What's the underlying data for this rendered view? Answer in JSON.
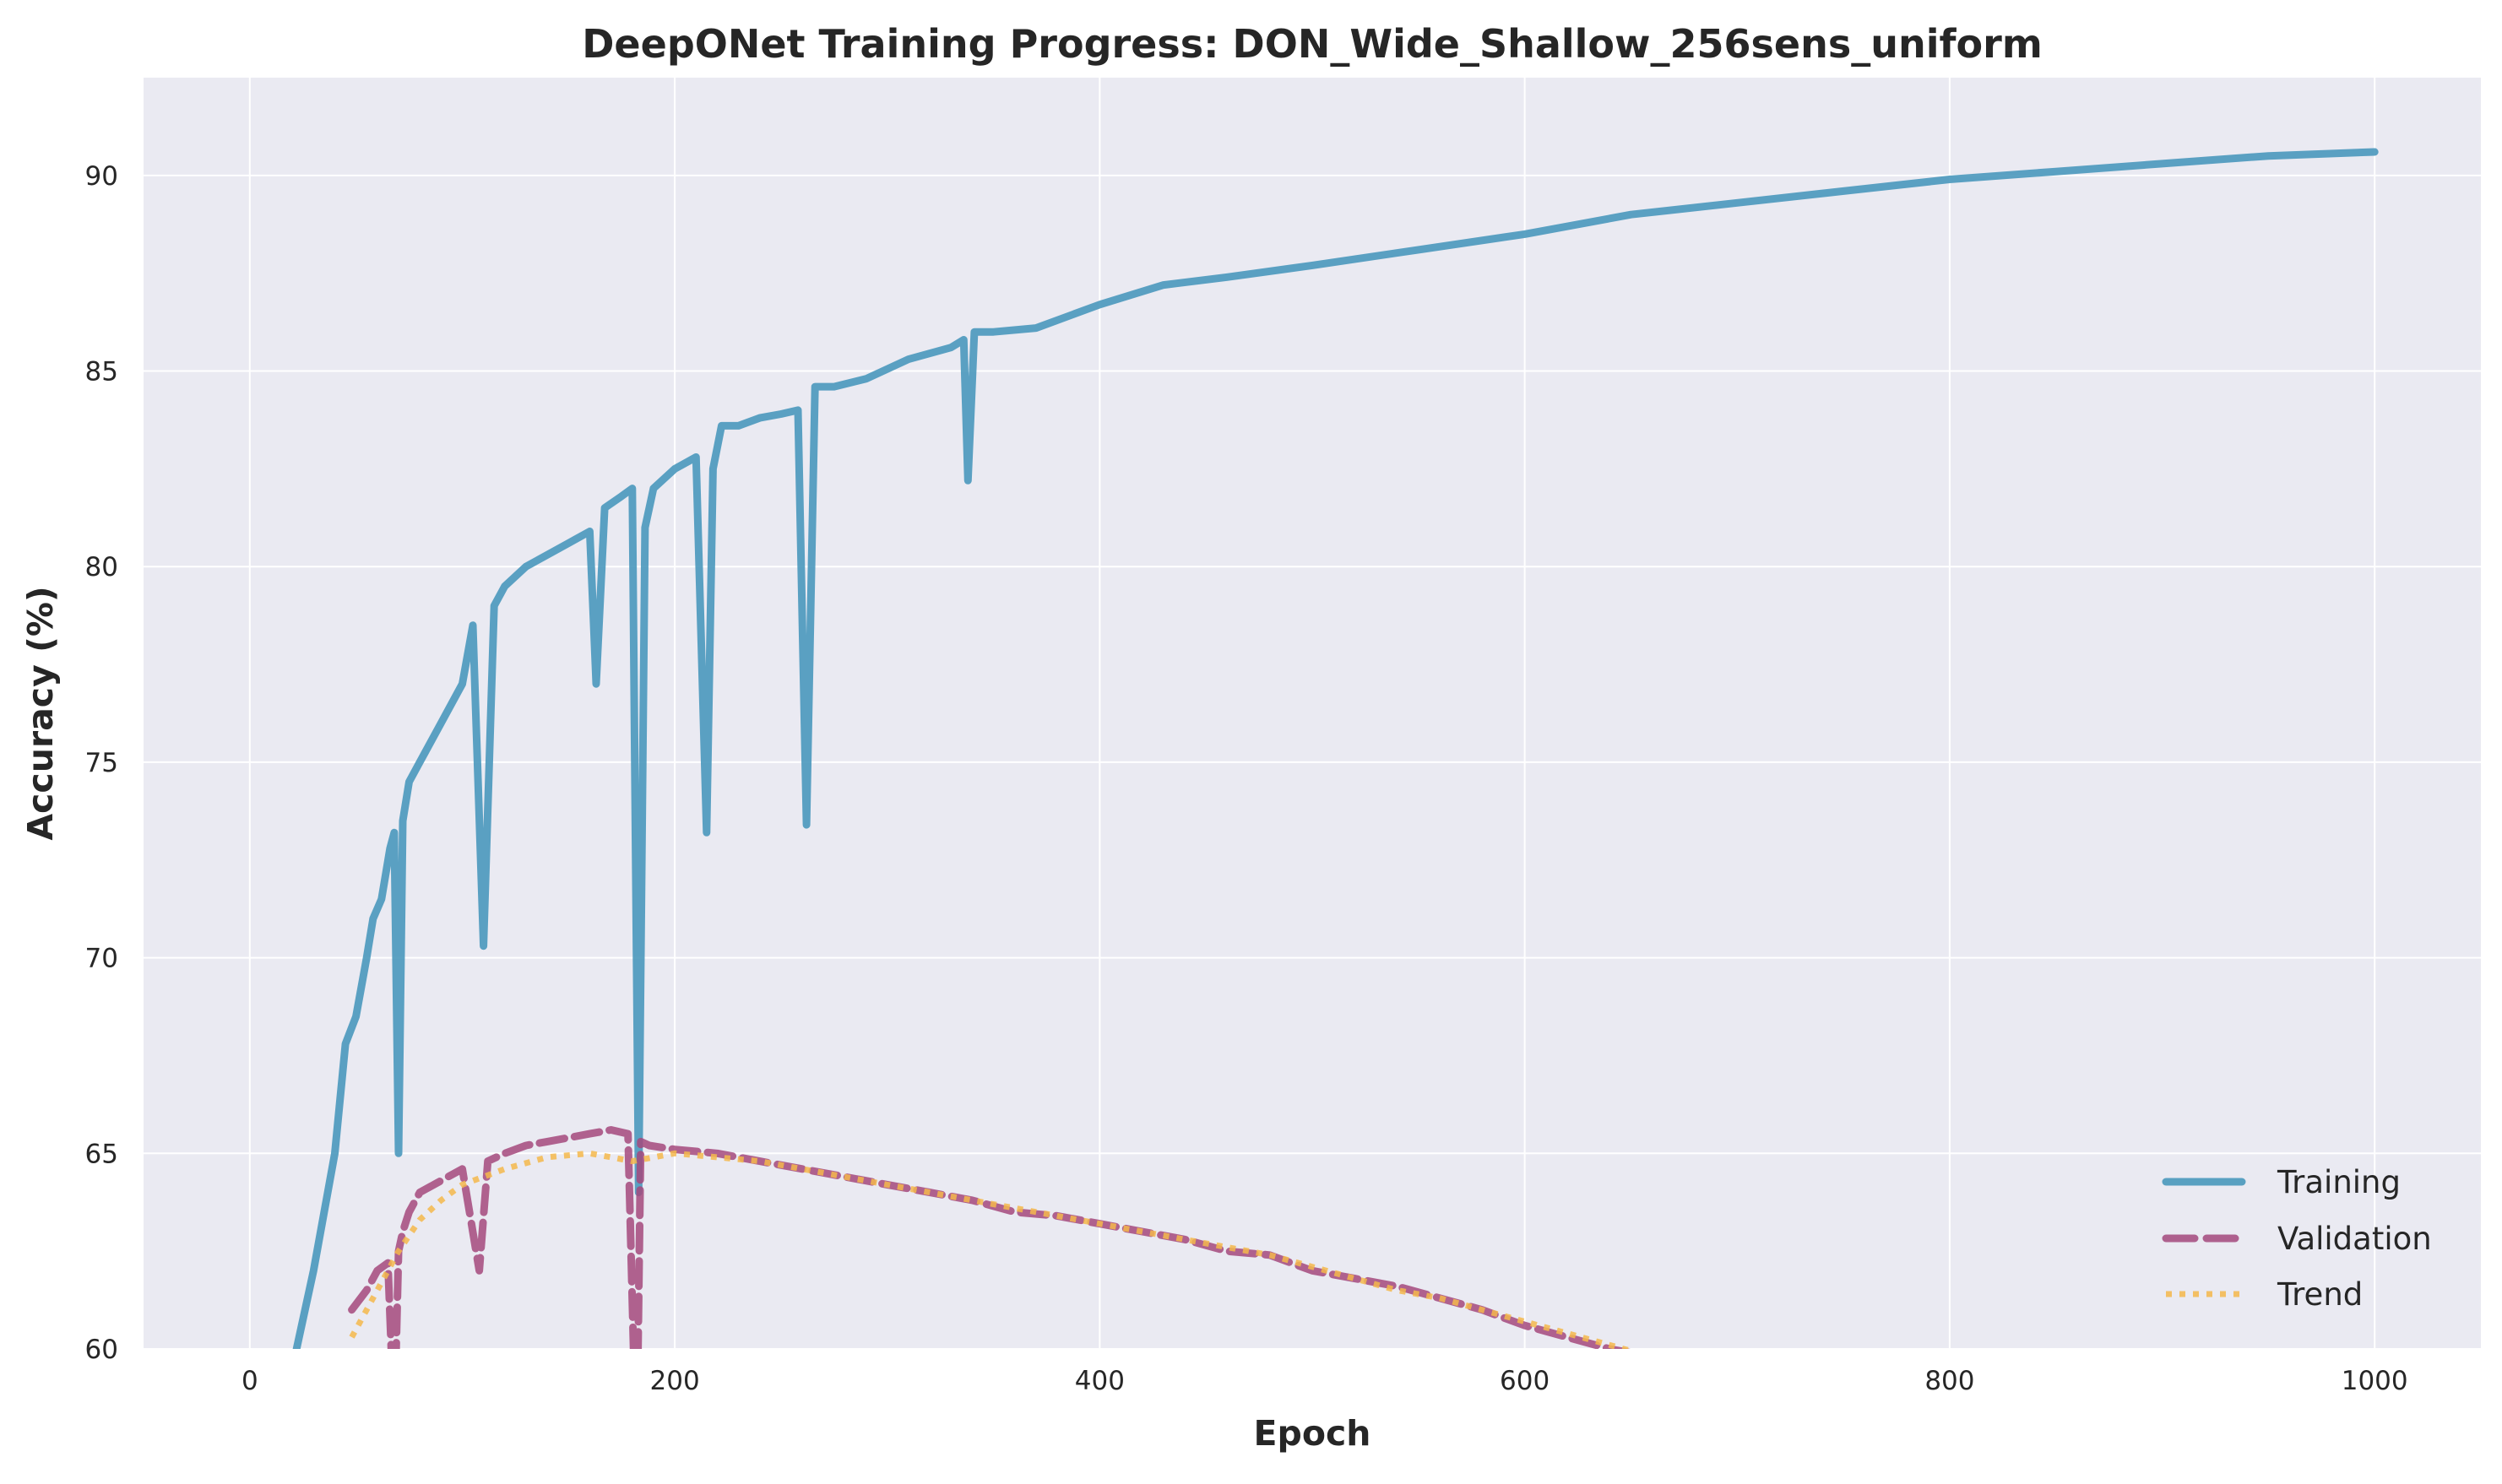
{
  "chart_data": {
    "type": "line",
    "title": "DeepONet Training Progress: DON_Wide_Shallow_256sens_uniform",
    "xlabel": "Epoch",
    "ylabel": "Accuracy (%)",
    "xlim": [
      -50,
      1050
    ],
    "ylim": [
      60,
      92.5
    ],
    "xticks": [
      0,
      200,
      400,
      600,
      800,
      1000
    ],
    "yticks": [
      60,
      65,
      70,
      75,
      80,
      85,
      90
    ],
    "grid": true,
    "legend_position": "bottom-right",
    "colors": {
      "plot_bg": "#eaeaf2",
      "grid": "#ffffff",
      "training": "#4a98bc",
      "validation": "#a4497d",
      "trend": "#f5b84c"
    },
    "series": [
      {
        "name": "Training",
        "style": "solid",
        "x": [
          22,
          30,
          40,
          45,
          50,
          55,
          58,
          62,
          66,
          68,
          70,
          72,
          75,
          80,
          90,
          100,
          105,
          110,
          115,
          120,
          130,
          140,
          150,
          160,
          163,
          167,
          175,
          180,
          183,
          186,
          190,
          200,
          210,
          215,
          218,
          222,
          230,
          240,
          250,
          258,
          262,
          266,
          275,
          290,
          310,
          330,
          336,
          338,
          341,
          350,
          370,
          400,
          430,
          460,
          500,
          550,
          600,
          650,
          700,
          750,
          800,
          850,
          900,
          950,
          1000
        ],
        "y": [
          60,
          62,
          65,
          67.8,
          68.5,
          70,
          71,
          71.5,
          72.8,
          73.2,
          65,
          73.5,
          74.5,
          75,
          76,
          77,
          78.5,
          70.3,
          79,
          79.5,
          80,
          80.3,
          80.6,
          80.9,
          77,
          81.5,
          81.8,
          82,
          64,
          81,
          82,
          82.5,
          82.8,
          73.2,
          82.5,
          83.6,
          83.6,
          83.8,
          83.9,
          84,
          73.4,
          84.6,
          84.6,
          84.8,
          85.3,
          85.6,
          85.8,
          82.2,
          86,
          86,
          86.1,
          86.7,
          87.2,
          87.4,
          87.7,
          88.1,
          88.5,
          89,
          89.3,
          89.6,
          89.9,
          90.1,
          90.3,
          90.5,
          90.6
        ]
      },
      {
        "name": "Validation",
        "style": "dashed",
        "x": [
          48,
          55,
          60,
          65,
          68,
          70,
          72,
          75,
          80,
          90,
          100,
          108,
          112,
          120,
          130,
          140,
          150,
          160,
          170,
          178,
          182,
          184,
          188,
          200,
          220,
          240,
          260,
          280,
          300,
          320,
          340,
          360,
          380,
          400,
          420,
          440,
          460,
          480,
          500,
          520,
          540,
          560,
          580,
          600,
          620,
          640,
          660,
          680,
          700
        ],
        "y": [
          61,
          61.5,
          62,
          62.2,
          58,
          62.5,
          63,
          63.5,
          64,
          64.3,
          64.6,
          62,
          64.8,
          65,
          65.2,
          65.3,
          65.4,
          65.5,
          65.6,
          65.5,
          57,
          65.3,
          65.2,
          65.1,
          65,
          64.8,
          64.6,
          64.4,
          64.2,
          64,
          63.8,
          63.5,
          63.4,
          63.2,
          63,
          62.8,
          62.5,
          62.4,
          62,
          61.8,
          61.6,
          61.3,
          61,
          60.6,
          60.3,
          60,
          59.8,
          59.6,
          59.4
        ]
      },
      {
        "name": "Trend",
        "style": "dotted",
        "x": [
          48,
          55,
          60,
          70,
          80,
          90,
          100,
          120,
          140,
          160,
          180,
          200,
          220,
          240,
          260,
          280,
          300,
          320,
          340,
          360,
          380,
          400,
          420,
          440,
          460,
          480,
          500,
          520,
          540,
          560,
          580,
          600,
          620,
          640,
          660
        ],
        "y": [
          60.3,
          61,
          61.5,
          62.5,
          63.3,
          63.8,
          64.2,
          64.6,
          64.9,
          65,
          64.8,
          65,
          64.9,
          64.8,
          64.6,
          64.4,
          64.2,
          64,
          63.8,
          63.6,
          63.4,
          63.2,
          63,
          62.8,
          62.6,
          62.4,
          62.1,
          61.8,
          61.5,
          61.3,
          61,
          60.7,
          60.4,
          60.1,
          59.8
        ]
      }
    ]
  }
}
